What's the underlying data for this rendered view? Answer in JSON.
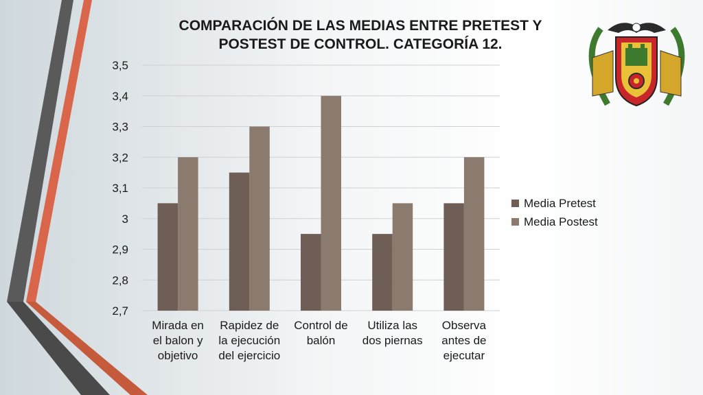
{
  "title_line1": "COMPARACIÓN DE LAS MEDIAS ENTRE PRETEST Y",
  "title_line2": "POSTEST DE CONTROL. CATEGORÍA 12.",
  "colors": {
    "pretest": "#6e5e55",
    "postest": "#8b7a6e",
    "stripe_gray": "#5a5a5a",
    "stripe_orange": "#d9664a",
    "grid": "#d0d0d0"
  },
  "chart_data": {
    "type": "bar",
    "categories": [
      [
        "Mirada en",
        "el balon y",
        "objetivo"
      ],
      [
        "Rapidez de",
        "la ejecución",
        "del ejercicio"
      ],
      [
        "Control de",
        "balón"
      ],
      [
        "Utiliza las",
        "dos piernas"
      ],
      [
        "Observa",
        "antes de",
        "ejecutar"
      ]
    ],
    "series": [
      {
        "name": "Media Pretest",
        "values": [
          3.05,
          3.15,
          2.95,
          2.95,
          3.05
        ]
      },
      {
        "name": "Media Postest",
        "values": [
          3.2,
          3.3,
          3.4,
          3.05,
          3.2
        ]
      }
    ],
    "ylim": [
      2.7,
      3.5
    ],
    "yticks": [
      "2,7",
      "2,8",
      "2,9",
      "3",
      "3,1",
      "3,2",
      "3,3",
      "3,4",
      "3,5"
    ],
    "grid": true,
    "legend_position": "right"
  },
  "emblem_icon": "university-coat-of-arms-icon"
}
